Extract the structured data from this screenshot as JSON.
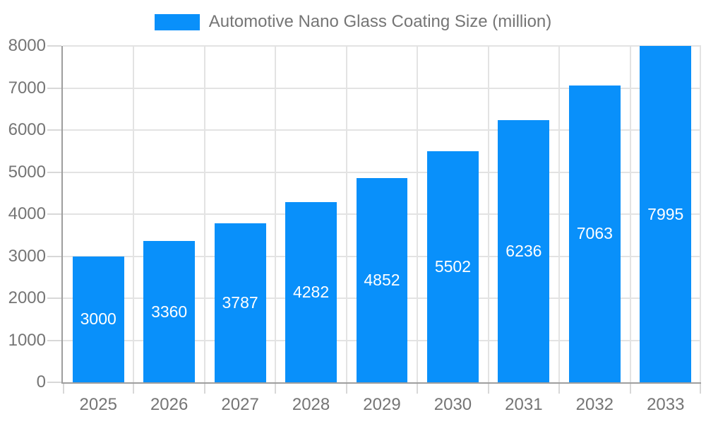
{
  "chart_data": {
    "type": "bar",
    "title": "Automotive Nano Glass Coating Size (million)",
    "legend_position": "top",
    "categories": [
      "2025",
      "2026",
      "2027",
      "2028",
      "2029",
      "2030",
      "2031",
      "2032",
      "2033"
    ],
    "series": [
      {
        "name": "Automotive Nano Glass Coating Size (million)",
        "values": [
          3000,
          3360,
          3787,
          4282,
          4852,
          5502,
          6236,
          7063,
          7995
        ]
      }
    ],
    "xlabel": "",
    "ylabel": "",
    "ylim": [
      0,
      8000
    ],
    "ytick_step": 1000,
    "yticks": [
      0,
      1000,
      2000,
      3000,
      4000,
      5000,
      6000,
      7000,
      8000
    ],
    "grid": true,
    "bar_labels_inside": true,
    "colors": {
      "bar": "#0990FA",
      "bar_label": "#FFFFFF",
      "axis_text": "#757575",
      "grid_line": "#E3E3E3",
      "tick_mark": "#D8D8D8",
      "axis_line": "#9E9E9E",
      "background": "#FFFFFF"
    }
  }
}
